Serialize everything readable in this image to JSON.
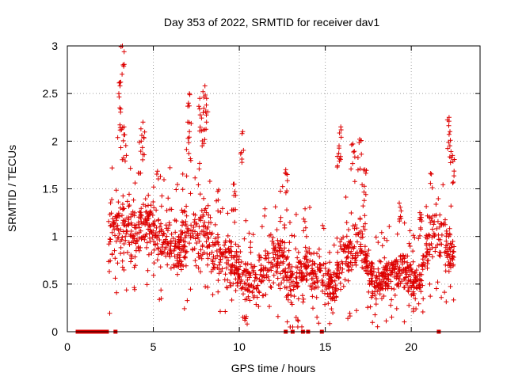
{
  "chart_data": {
    "type": "scatter",
    "title": "Day 353 of 2022, SRMTID for receiver dav1",
    "xlabel": "GPS time / hours",
    "ylabel": "SRMTID / TECUs",
    "xlim": [
      0,
      24
    ],
    "ylim": [
      0,
      3
    ],
    "xticks": [
      0,
      5,
      10,
      15,
      20
    ],
    "yticks": [
      0,
      0.5,
      1,
      1.5,
      2,
      2.5,
      3
    ],
    "xtick_labels": [
      "0",
      "5",
      "10",
      "15",
      "20"
    ],
    "ytick_labels": [
      "0",
      "0.5",
      "1",
      "1.5",
      "2",
      "2.5",
      "3"
    ],
    "grid": true,
    "marker": "+",
    "color": "#dd0000",
    "zero_markers_x": [
      0.6,
      0.8,
      1.0,
      1.1,
      1.3,
      1.45,
      1.6,
      1.75,
      1.9,
      2.1,
      2.3,
      2.8,
      12.7,
      13.1,
      13.7,
      14.0,
      14.8,
      21.6
    ],
    "envelope": {
      "description": "dense point cloud; per-hour typical range [x, y_low, y_high]",
      "bands": [
        [
          2.4,
          0.35,
          1.6
        ],
        [
          2.9,
          0.5,
          1.8
        ],
        [
          3.2,
          0.4,
          1.7
        ],
        [
          3.6,
          0.6,
          1.6
        ],
        [
          4.0,
          0.5,
          1.5
        ],
        [
          4.5,
          0.7,
          1.7
        ],
        [
          5.0,
          0.6,
          1.5
        ],
        [
          5.5,
          0.5,
          1.4
        ],
        [
          6.0,
          0.45,
          1.5
        ],
        [
          6.5,
          0.4,
          1.3
        ],
        [
          7.0,
          0.45,
          1.6
        ],
        [
          7.5,
          0.5,
          1.5
        ],
        [
          8.0,
          0.55,
          1.6
        ],
        [
          8.5,
          0.5,
          1.3
        ],
        [
          9.0,
          0.35,
          1.2
        ],
        [
          9.5,
          0.3,
          1.1
        ],
        [
          10.0,
          0.3,
          1.0
        ],
        [
          10.5,
          0.2,
          0.9
        ],
        [
          11.0,
          0.15,
          0.8
        ],
        [
          11.5,
          0.3,
          1.1
        ],
        [
          12.0,
          0.35,
          1.2
        ],
        [
          12.5,
          0.3,
          1.3
        ],
        [
          13.0,
          0.1,
          1.0
        ],
        [
          13.5,
          0.2,
          1.0
        ],
        [
          14.0,
          0.25,
          1.1
        ],
        [
          14.5,
          0.3,
          0.9
        ],
        [
          15.0,
          0.2,
          1.0
        ],
        [
          15.5,
          0.1,
          0.8
        ],
        [
          16.0,
          0.25,
          1.3
        ],
        [
          16.5,
          0.35,
          1.3
        ],
        [
          17.0,
          0.45,
          1.5
        ],
        [
          17.5,
          0.3,
          1.0
        ],
        [
          18.0,
          0.2,
          0.8
        ],
        [
          18.5,
          0.25,
          0.9
        ],
        [
          19.0,
          0.3,
          0.9
        ],
        [
          19.5,
          0.3,
          1.0
        ],
        [
          20.0,
          0.3,
          0.85
        ],
        [
          20.5,
          0.3,
          0.8
        ],
        [
          21.0,
          0.5,
          1.4
        ],
        [
          21.5,
          0.6,
          1.6
        ],
        [
          22.0,
          0.5,
          1.3
        ],
        [
          22.5,
          0.5,
          1.1
        ]
      ],
      "peaks": [
        [
          3.2,
          3.0
        ],
        [
          3.1,
          2.62
        ],
        [
          3.05,
          2.35
        ],
        [
          3.3,
          2.15
        ],
        [
          4.4,
          2.2
        ],
        [
          4.3,
          2.0
        ],
        [
          7.1,
          2.5
        ],
        [
          7.0,
          2.2
        ],
        [
          7.7,
          2.45
        ],
        [
          8.0,
          2.58
        ],
        [
          8.1,
          2.45
        ],
        [
          7.9,
          2.3
        ],
        [
          10.2,
          2.1
        ],
        [
          12.7,
          1.7
        ],
        [
          15.9,
          2.15
        ],
        [
          15.8,
          1.95
        ],
        [
          16.6,
          1.97
        ],
        [
          17.0,
          2.02
        ],
        [
          17.3,
          1.7
        ],
        [
          22.2,
          2.25
        ],
        [
          22.25,
          2.1
        ],
        [
          22.4,
          1.85
        ],
        [
          9.7,
          1.55
        ],
        [
          20.5,
          1.25
        ],
        [
          19.3,
          1.35
        ]
      ]
    }
  }
}
